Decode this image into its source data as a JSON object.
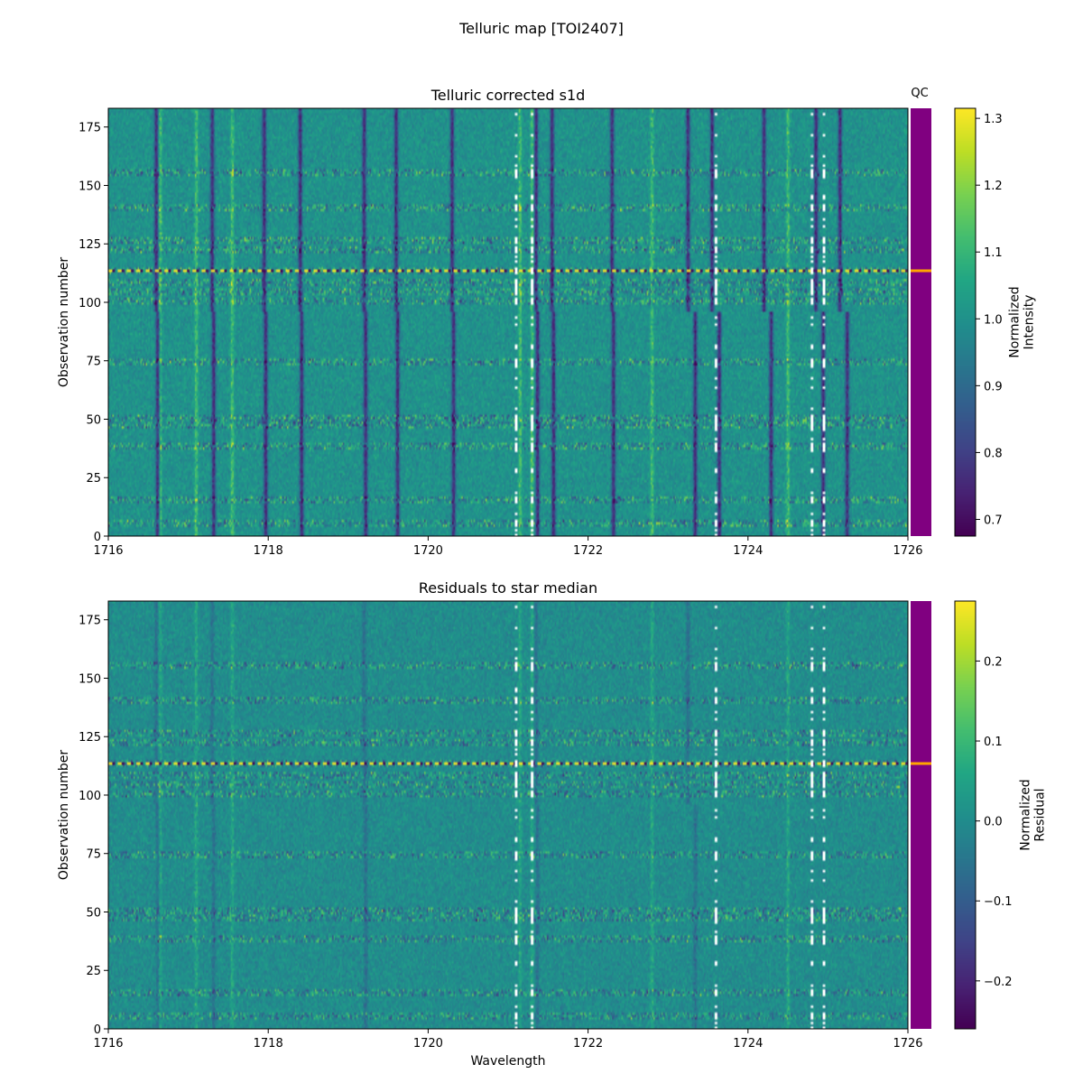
{
  "suptitle": "Telluric map [TOI2407]",
  "colors": {
    "qc_ok": "#800080",
    "qc_flag": "#ffa500",
    "colormap": "viridis",
    "masked": "#ffffff"
  },
  "chart_data": [
    {
      "type": "heatmap",
      "title": "Telluric corrected s1d",
      "xlabel": "",
      "ylabel": "Observation number",
      "xlim": [
        1716,
        1726
      ],
      "ylim": [
        0,
        183
      ],
      "x_ticks": [
        "1716",
        "1718",
        "1720",
        "1722",
        "1724",
        "1726"
      ],
      "y_ticks": [
        "0",
        "25",
        "50",
        "75",
        "100",
        "125",
        "150",
        "175"
      ],
      "colorbar": {
        "label": "Normalized\nIntensity",
        "range": [
          0.675,
          1.315
        ],
        "ticks": [
          "0.7",
          "0.8",
          "0.9",
          "1.0",
          "1.1",
          "1.2",
          "1.3"
        ]
      },
      "absorption_lines": [
        1716.6,
        1717.3,
        1717.95,
        1718.4,
        1719.2,
        1719.6,
        1720.3,
        1721.35,
        1721.55,
        1722.3,
        1723.25,
        1723.55,
        1724.2,
        1724.85,
        1725.15
      ],
      "emission_lines": [
        1716.65,
        1717.1,
        1717.55,
        1721.15,
        1721.3,
        1722.8,
        1724.5
      ],
      "noisy_rows": [
        5,
        15,
        38,
        47,
        50,
        74,
        100,
        104,
        108,
        113,
        122,
        126,
        140,
        155
      ],
      "qc_flag_row": 113,
      "qc_label": "QC"
    },
    {
      "type": "heatmap",
      "title": "Residuals to star median",
      "xlabel": "Wavelength",
      "ylabel": "Observation number",
      "xlim": [
        1716,
        1726
      ],
      "ylim": [
        0,
        183
      ],
      "x_ticks": [
        "1716",
        "1718",
        "1720",
        "1722",
        "1724",
        "1726"
      ],
      "y_ticks": [
        "0",
        "25",
        "50",
        "75",
        "100",
        "125",
        "150",
        "175"
      ],
      "colorbar": {
        "label": "Normalized\nResidual",
        "range": [
          -0.26,
          0.275
        ],
        "ticks": [
          "−0.2",
          "−0.1",
          "0.0",
          "0.1",
          "0.2"
        ]
      },
      "absorption_lines": [
        1716.6,
        1717.3,
        1719.2,
        1721.35,
        1723.25
      ],
      "emission_lines": [
        1716.65,
        1717.1,
        1717.55,
        1721.15,
        1721.3,
        1722.8,
        1724.5
      ],
      "noisy_rows": [
        5,
        15,
        38,
        47,
        50,
        74,
        100,
        104,
        108,
        113,
        122,
        126,
        140,
        155
      ],
      "qc_flag_row": 113
    }
  ]
}
